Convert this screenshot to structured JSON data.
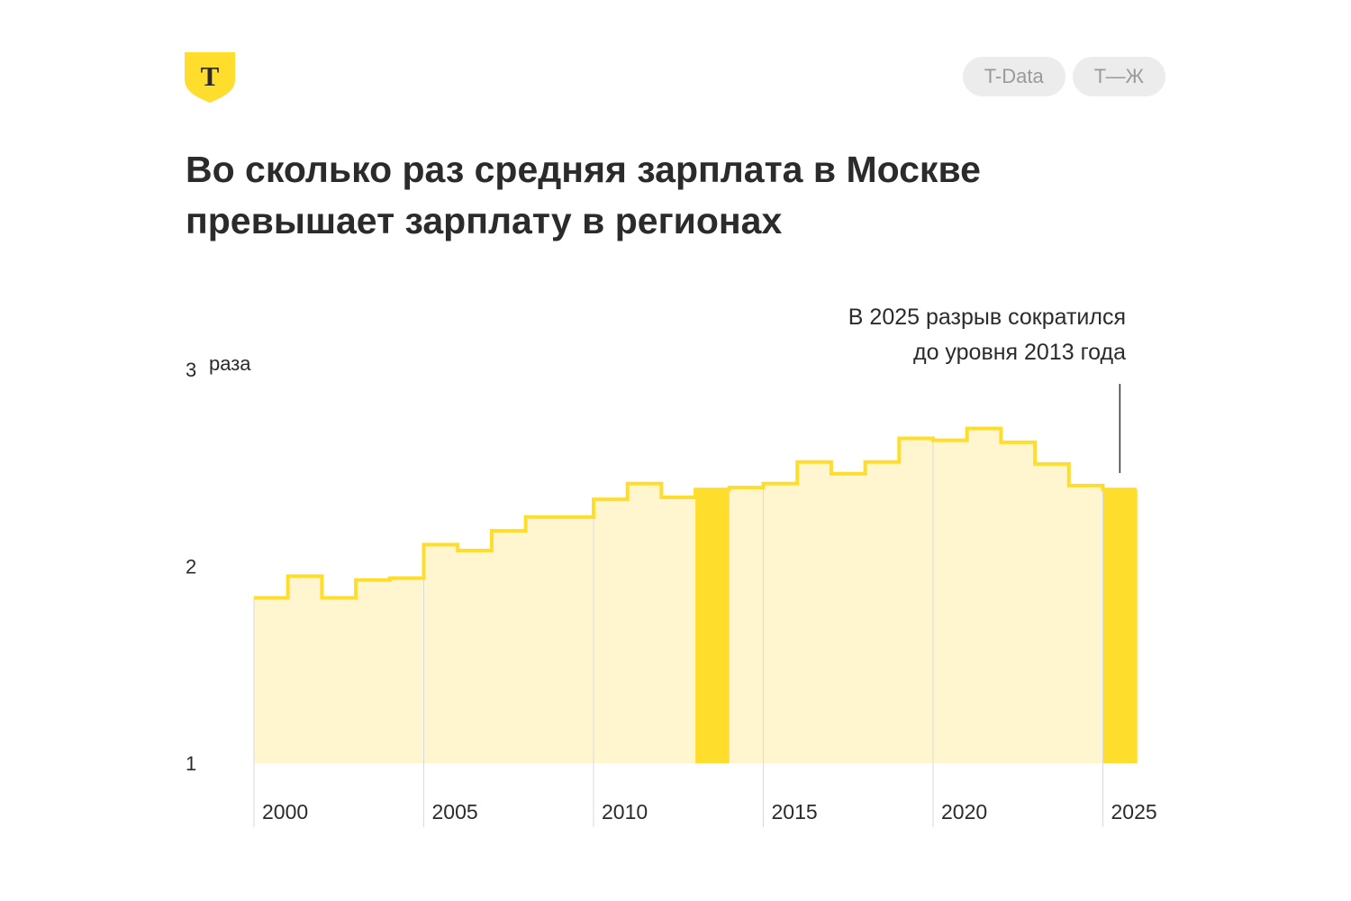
{
  "header": {
    "logo_letter": "Т",
    "logo_color": "#FFDD2D",
    "pills": [
      "T-Data",
      "Т—Ж"
    ]
  },
  "title_lines": [
    "Во сколько раз средняя зарплата в Москве",
    "превышает зарплату в регионах"
  ],
  "chart_data": {
    "type": "bar",
    "title": "Во сколько раз средняя зарплата в Москве превышает зарплату в регионах",
    "x": [
      2000,
      2001,
      2002,
      2003,
      2004,
      2005,
      2006,
      2007,
      2008,
      2009,
      2010,
      2011,
      2012,
      2013,
      2014,
      2015,
      2016,
      2017,
      2018,
      2019,
      2020,
      2021,
      2022,
      2023,
      2024,
      2025
    ],
    "values": [
      1.84,
      1.95,
      1.84,
      1.93,
      1.94,
      2.11,
      2.08,
      2.18,
      2.25,
      2.25,
      2.34,
      2.42,
      2.35,
      2.39,
      2.4,
      2.42,
      2.53,
      2.47,
      2.53,
      2.65,
      2.64,
      2.7,
      2.63,
      2.52,
      2.41,
      2.39
    ],
    "highlight": [
      2013,
      2025
    ],
    "yticks": [
      1,
      2,
      3
    ],
    "ytick_labels": [
      "1",
      "2",
      "3"
    ],
    "ytick_unit": "раза",
    "xticks": [
      2000,
      2005,
      2010,
      2015,
      2020,
      2025
    ],
    "ylim": [
      1,
      3
    ],
    "annotation": {
      "lines": [
        "В 2025 разрыв сократился",
        "до уровня 2013 года"
      ],
      "target": 2025
    },
    "colors": {
      "fill": "#FFF6CF",
      "line": "#FFDD2D",
      "highlight": "#FFDD2D",
      "grid": "#DADADA",
      "text": "#2b2b2b"
    }
  }
}
